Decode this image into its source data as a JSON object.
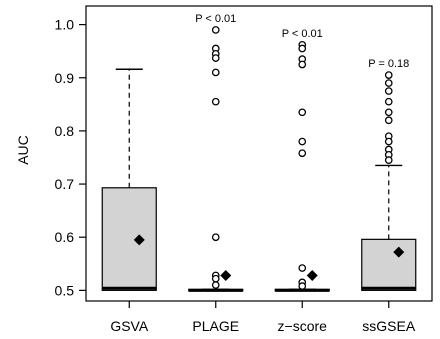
{
  "chart_data": {
    "type": "box",
    "ylabel": "AUC",
    "ylim": [
      0.48,
      1.035
    ],
    "yticks": [
      0.5,
      0.6,
      0.7,
      0.8,
      0.9,
      1.0
    ],
    "ytick_labels": [
      "0.5",
      "0.6",
      "0.7",
      "0.8",
      "0.9",
      "1.0"
    ],
    "categories": [
      "GSVA",
      "PLAGE",
      "z−score",
      "ssGSEA"
    ],
    "box_color": "#d3d3d3",
    "boxes": [
      {
        "name": "GSVA",
        "q1": 0.5,
        "median": 0.504,
        "q3": 0.693,
        "whisker_low": 0.5,
        "whisker_high": 0.916,
        "mean": 0.595,
        "outliers": [],
        "p_value": ""
      },
      {
        "name": "PLAGE",
        "q1": 0.5,
        "median": 0.5,
        "q3": 0.502,
        "whisker_low": 0.5,
        "whisker_high": 0.502,
        "mean": 0.528,
        "outliers": [
          0.99,
          0.955,
          0.945,
          0.937,
          0.91,
          0.855,
          0.6,
          0.528,
          0.522,
          0.51
        ],
        "p_value": "P < 0.01"
      },
      {
        "name": "z−score",
        "q1": 0.5,
        "median": 0.5,
        "q3": 0.502,
        "whisker_low": 0.5,
        "whisker_high": 0.502,
        "mean": 0.528,
        "outliers": [
          0.962,
          0.955,
          0.935,
          0.925,
          0.835,
          0.78,
          0.758,
          0.542,
          0.515,
          0.508
        ],
        "p_value": "P < 0.01"
      },
      {
        "name": "ssGSEA",
        "q1": 0.5,
        "median": 0.504,
        "q3": 0.596,
        "whisker_low": 0.5,
        "whisker_high": 0.735,
        "mean": 0.572,
        "outliers": [
          0.905,
          0.89,
          0.875,
          0.855,
          0.835,
          0.82,
          0.79,
          0.78,
          0.765,
          0.755,
          0.745
        ],
        "p_value": "P = 0.18"
      }
    ]
  }
}
